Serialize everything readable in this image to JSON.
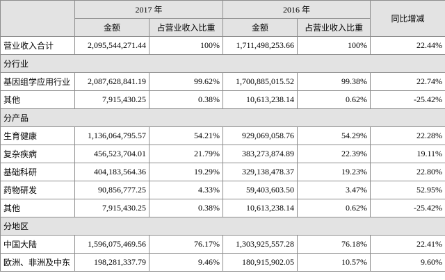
{
  "table": {
    "header": {
      "years": [
        "2017 年",
        "2016 年"
      ],
      "change": "同比增减",
      "sub": [
        "金额",
        "占营业收入比重",
        "金额",
        "占营业收入比重"
      ]
    },
    "rows": [
      [
        "营业收入合计",
        "2,095,544,271.44",
        "100%",
        "1,711,498,253.66",
        "100%",
        "22.44%"
      ],
      [
        "分行业"
      ],
      [
        "基因组学应用行业",
        "2,087,628,841.19",
        "99.62%",
        "1,700,885,015.52",
        "99.38%",
        "22.74%"
      ],
      [
        "其他",
        "7,915,430.25",
        "0.38%",
        "10,613,238.14",
        "0.62%",
        "-25.42%"
      ],
      [
        "分产品"
      ],
      [
        "生育健康",
        "1,136,064,795.57",
        "54.21%",
        "929,069,058.76",
        "54.29%",
        "22.28%"
      ],
      [
        "复杂疾病",
        "456,523,704.01",
        "21.79%",
        "383,273,874.89",
        "22.39%",
        "19.11%"
      ],
      [
        "基础科研",
        "404,183,564.36",
        "19.29%",
        "329,138,478.37",
        "19.23%",
        "22.80%"
      ],
      [
        "药物研发",
        "90,856,777.25",
        "4.33%",
        "59,403,603.50",
        "3.47%",
        "52.95%"
      ],
      [
        "其他",
        "7,915,430.25",
        "0.38%",
        "10,613,238.14",
        "0.62%",
        "-25.42%"
      ],
      [
        "分地区"
      ],
      [
        "中国大陆",
        "1,596,075,469.56",
        "76.17%",
        "1,303,925,557.28",
        "76.18%",
        "22.41%"
      ],
      [
        "欧洲、非洲及中东",
        "198,281,337.79",
        "9.46%",
        "180,915,902.05",
        "10.57%",
        "9.60%"
      ]
    ]
  }
}
